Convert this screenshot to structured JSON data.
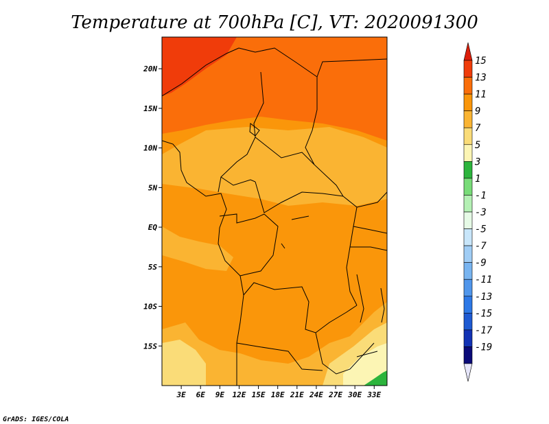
{
  "title": "Temperature at 700hPa [C], VT: 2020091300",
  "credit": "GrADS: IGES/COLA",
  "map": {
    "region": "Central Africa",
    "lon_range": [
      0,
      35
    ],
    "lat_range": [
      -20,
      24
    ],
    "lat_ticks": [
      {
        "value": 20,
        "label": "20N"
      },
      {
        "value": 15,
        "label": "15N"
      },
      {
        "value": 10,
        "label": "10N"
      },
      {
        "value": 5,
        "label": "5N"
      },
      {
        "value": 0,
        "label": "EQ"
      },
      {
        "value": -5,
        "label": "5S"
      },
      {
        "value": -10,
        "label": "10S"
      },
      {
        "value": -15,
        "label": "15S"
      }
    ],
    "lon_ticks": [
      {
        "value": 3,
        "label": "3E"
      },
      {
        "value": 6,
        "label": "6E"
      },
      {
        "value": 9,
        "label": "9E"
      },
      {
        "value": 12,
        "label": "12E"
      },
      {
        "value": 15,
        "label": "15E"
      },
      {
        "value": 18,
        "label": "18E"
      },
      {
        "value": 21,
        "label": "21E"
      },
      {
        "value": 24,
        "label": "24E"
      },
      {
        "value": 27,
        "label": "27E"
      },
      {
        "value": 30,
        "label": "30E"
      },
      {
        "value": 33,
        "label": "33E"
      }
    ]
  },
  "colorbar": {
    "labels": [
      "15",
      "13",
      "11",
      "9",
      "7",
      "5",
      "3",
      "1",
      "-1",
      "-3",
      "-5",
      "-7",
      "-9",
      "-11",
      "-13",
      "-15",
      "-17",
      "-19"
    ],
    "colors": [
      "#f03c0a",
      "#fa6e0a",
      "#fa960a",
      "#fab432",
      "#fadc78",
      "#fcf5b4",
      "#2cb43c",
      "#78dc78",
      "#b4f0b4",
      "#e6fae6",
      "#c8e6fa",
      "#a0cdf5",
      "#78b4f0",
      "#5096eb",
      "#2d78e6",
      "#1e5ad2",
      "#1232b4",
      "#0a0a78"
    ],
    "top_arrow_color": "#dc1e0a",
    "bottom_arrow_color": "#e6e6fa"
  },
  "field_colors": {
    "t13": "#f03c0a",
    "t11": "#fa6e0a",
    "t9": "#fa960a",
    "t7": "#fab432",
    "t5": "#fadc78",
    "t3": "#fcf5b4",
    "t1": "#2cb43c"
  }
}
